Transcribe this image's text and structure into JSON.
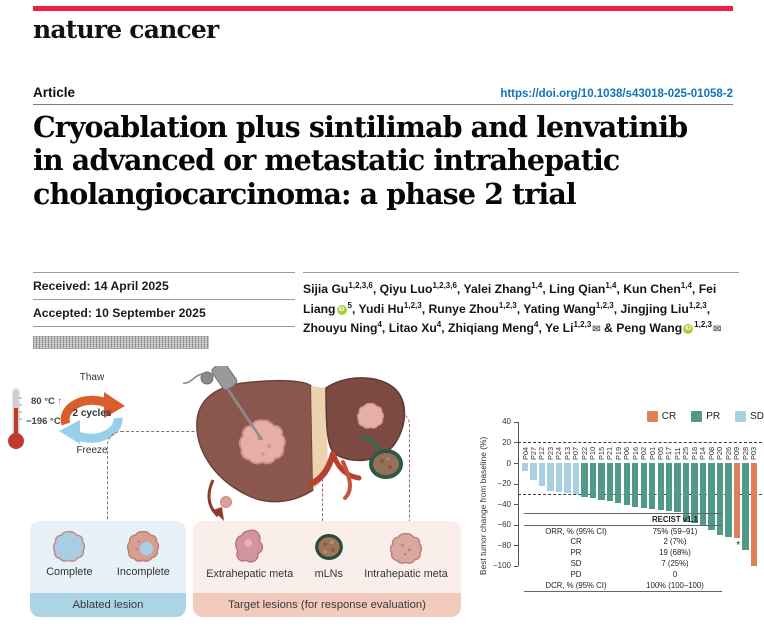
{
  "header": {
    "journal": "nature cancer",
    "article_label": "Article",
    "doi": "https://doi.org/10.1038/s43018-025-01058-2"
  },
  "title_lines": [
    "Cryoablation plus sintilimab and lenvatinib",
    "in advanced or metastatic intrahepatic",
    "cholangiocarcinoma: a phase 2 trial"
  ],
  "dates": {
    "received": "Received: 14 April 2025",
    "accepted": "Accepted: 10 September 2025"
  },
  "authors": [
    {
      "name": "Sijia Gu",
      "sup": "1,2,3,6"
    },
    {
      "name": "Qiyu Luo",
      "sup": "1,2,3,6"
    },
    {
      "name": "Yalei Zhang",
      "sup": "1,4"
    },
    {
      "name": "Ling Qian",
      "sup": "1,4"
    },
    {
      "name": "Kun Chen",
      "sup": "1,4"
    },
    {
      "name": "Fei Liang",
      "sup": "5",
      "orcid": true
    },
    {
      "name": "Yudi Hu",
      "sup": "1,2,3"
    },
    {
      "name": "Runye Zhou",
      "sup": "1,2,3"
    },
    {
      "name": "Yating Wang",
      "sup": "1,2,3"
    },
    {
      "name": "Jingjing Liu",
      "sup": "1,2,3"
    },
    {
      "name": "Zhouyu Ning",
      "sup": "4"
    },
    {
      "name": "Litao Xu",
      "sup": "4"
    },
    {
      "name": "Zhiqiang Meng",
      "sup": "4"
    },
    {
      "name": "Ye Li",
      "sup": "1,2,3",
      "email": true
    },
    {
      "name": "Peng Wang",
      "sup": "1,2,3",
      "orcid": true,
      "email": true
    }
  ],
  "figure": {
    "cycle": {
      "thaw": "Thaw",
      "center": "2 cycles",
      "freeze": "Freeze",
      "temp_high": "80 °C",
      "temp_low": "−196 °C"
    },
    "ablated_box": {
      "banner": "Ablated lesion",
      "items": [
        "Complete",
        "Incomplete"
      ]
    },
    "target_box": {
      "banner": "Target lesions (for response evaluation)",
      "items": [
        "Extrahepatic meta",
        "mLNs",
        "Intrahepatic meta"
      ]
    }
  },
  "chart_data": {
    "type": "bar",
    "title": "",
    "xlabel": "",
    "ylabel": "Best tumor change from baseline (%)",
    "ylim": [
      -100,
      40
    ],
    "yticks": [
      40,
      20,
      0,
      -20,
      -40,
      -60,
      -80,
      -100
    ],
    "reference_lines": [
      20,
      -30
    ],
    "legend": [
      {
        "label": "CR",
        "color": "#e0805b"
      },
      {
        "label": "PR",
        "color": "#519a89"
      },
      {
        "label": "SD",
        "color": "#a7d0e0"
      }
    ],
    "colors": {
      "CR": "#e0805b",
      "PR": "#519a89",
      "SD": "#a7d0e0"
    },
    "patients": [
      {
        "id": "P04",
        "value": -8,
        "response": "SD"
      },
      {
        "id": "P27",
        "value": -17,
        "response": "SD"
      },
      {
        "id": "P12",
        "value": -22,
        "response": "SD"
      },
      {
        "id": "P23",
        "value": -27,
        "response": "SD"
      },
      {
        "id": "P24",
        "value": -28,
        "response": "SD"
      },
      {
        "id": "P13",
        "value": -29,
        "response": "SD"
      },
      {
        "id": "P07",
        "value": -30,
        "response": "SD"
      },
      {
        "id": "P22",
        "value": -33,
        "response": "PR"
      },
      {
        "id": "P10",
        "value": -34,
        "response": "PR"
      },
      {
        "id": "P15",
        "value": -36,
        "response": "PR"
      },
      {
        "id": "P21",
        "value": -37,
        "response": "PR"
      },
      {
        "id": "P19",
        "value": -39,
        "response": "PR"
      },
      {
        "id": "P06",
        "value": -41,
        "response": "PR"
      },
      {
        "id": "P16",
        "value": -43,
        "response": "PR"
      },
      {
        "id": "P02",
        "value": -44,
        "response": "PR"
      },
      {
        "id": "P01",
        "value": -45,
        "response": "PR"
      },
      {
        "id": "P05",
        "value": -46,
        "response": "PR"
      },
      {
        "id": "P17",
        "value": -47,
        "response": "PR"
      },
      {
        "id": "P11",
        "value": -48,
        "response": "PR"
      },
      {
        "id": "P25",
        "value": -57,
        "response": "PR"
      },
      {
        "id": "P18",
        "value": -58,
        "response": "PR"
      },
      {
        "id": "P14",
        "value": -60,
        "response": "PR"
      },
      {
        "id": "P08",
        "value": -65,
        "response": "PR"
      },
      {
        "id": "P20",
        "value": -70,
        "response": "PR"
      },
      {
        "id": "P26",
        "value": -72,
        "response": "PR"
      },
      {
        "id": "P09",
        "value": -73,
        "response": "CR"
      },
      {
        "id": "P28",
        "value": -85,
        "response": "PR"
      },
      {
        "id": "P03",
        "value": -100,
        "response": "CR"
      }
    ],
    "annotation": {
      "text": "*",
      "x_id": "P28",
      "y": -80
    },
    "table": {
      "header": "RECIST v1.1",
      "rows": [
        {
          "label": "ORR, % (95% CI)",
          "value": "75% (59–91)"
        },
        {
          "label": "CR",
          "value": "2 (7%)"
        },
        {
          "label": "PR",
          "value": "19 (68%)"
        },
        {
          "label": "SD",
          "value": "7 (25%)"
        },
        {
          "label": "PD",
          "value": "0"
        },
        {
          "label": "DCR, % (95% CI)",
          "value": "100% (100–100)"
        }
      ]
    }
  }
}
